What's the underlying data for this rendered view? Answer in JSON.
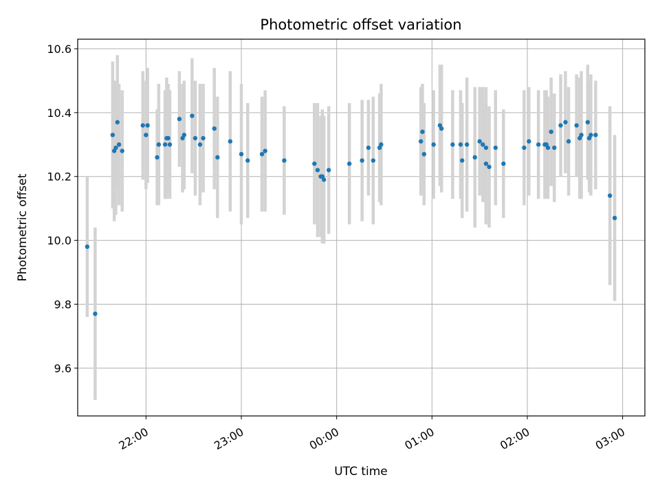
{
  "chart_data": {
    "type": "scatter",
    "title": "Photometric offset variation",
    "xlabel": "UTC time",
    "ylabel": "Photometric offset",
    "x_ticks": [
      "22:00",
      "23:00",
      "00:00",
      "01:00",
      "02:00",
      "03:00"
    ],
    "y_ticks": [
      "9.6",
      "9.8",
      "10.0",
      "10.2",
      "10.4",
      "10.6"
    ],
    "xlim": [
      "21:17",
      "03:14"
    ],
    "ylim": [
      9.45,
      10.63
    ],
    "grid": true,
    "colors": {
      "points": "#1f77b4",
      "errorbars": "#d3d3d3",
      "grid": "#b0b0b0"
    },
    "series": [
      {
        "time": [
          "21:23",
          "21:28",
          "21:39",
          "21:40",
          "21:41",
          "21:42",
          "21:43",
          "21:45",
          "21:58",
          "22:00",
          "22:01",
          "22:07",
          "22:08",
          "22:12",
          "22:13",
          "22:14",
          "22:15",
          "22:21",
          "22:23",
          "22:24",
          "22:29",
          "22:31",
          "22:34",
          "22:36",
          "22:43",
          "22:45",
          "22:53",
          "23:00",
          "23:04",
          "23:13",
          "23:15",
          "23:27",
          "23:46",
          "23:48",
          "23:50",
          "23:51",
          "23:52",
          "23:55",
          "24:08",
          "24:16",
          "24:20",
          "24:23",
          "24:27",
          "24:28",
          "24:53",
          "24:54",
          "24:55",
          "25:01",
          "25:05",
          "25:06",
          "25:13",
          "25:18",
          "25:19",
          "25:22",
          "25:27",
          "25:30",
          "25:32",
          "25:34",
          "25:34",
          "25:36",
          "25:40",
          "25:45",
          "25:58",
          "26:01",
          "26:07",
          "26:11",
          "26:12",
          "26:13",
          "26:15",
          "26:17",
          "26:21",
          "26:24",
          "26:26",
          "26:31",
          "26:33",
          "26:34",
          "26:38",
          "26:39",
          "26:40",
          "26:43",
          "26:52",
          "26:55"
        ],
        "y": [
          9.98,
          9.77,
          10.33,
          10.28,
          10.29,
          10.37,
          10.3,
          10.28,
          10.36,
          10.33,
          10.36,
          10.26,
          10.3,
          10.3,
          10.32,
          10.32,
          10.3,
          10.38,
          10.32,
          10.33,
          10.39,
          10.32,
          10.3,
          10.32,
          10.35,
          10.26,
          10.31,
          10.27,
          10.25,
          10.27,
          10.28,
          10.25,
          10.24,
          10.22,
          10.2,
          10.2,
          10.19,
          10.22,
          10.24,
          10.25,
          10.29,
          10.25,
          10.29,
          10.3,
          10.31,
          10.34,
          10.27,
          10.3,
          10.36,
          10.35,
          10.3,
          10.3,
          10.25,
          10.3,
          10.26,
          10.31,
          10.3,
          10.29,
          10.24,
          10.23,
          10.29,
          10.24,
          10.29,
          10.31,
          10.3,
          10.3,
          10.3,
          10.29,
          10.34,
          10.29,
          10.36,
          10.37,
          10.31,
          10.36,
          10.32,
          10.33,
          10.37,
          10.32,
          10.33,
          10.33,
          10.14,
          10.07
        ],
        "err": [
          0.22,
          0.27,
          0.23,
          0.22,
          0.21,
          0.21,
          0.19,
          0.19,
          0.17,
          0.17,
          0.18,
          0.15,
          0.19,
          0.17,
          0.19,
          0.17,
          0.17,
          0.15,
          0.17,
          0.17,
          0.18,
          0.18,
          0.19,
          0.17,
          0.19,
          0.19,
          0.22,
          0.22,
          0.18,
          0.18,
          0.19,
          0.17,
          0.19,
          0.21,
          0.19,
          0.21,
          0.2,
          0.2,
          0.19,
          0.19,
          0.15,
          0.2,
          0.17,
          0.19,
          0.17,
          0.15,
          0.16,
          0.17,
          0.19,
          0.2,
          0.17,
          0.17,
          0.18,
          0.21,
          0.22,
          0.17,
          0.18,
          0.19,
          0.19,
          0.19,
          0.18,
          0.17,
          0.18,
          0.17,
          0.17,
          0.17,
          0.17,
          0.16,
          0.17,
          0.17,
          0.16,
          0.16,
          0.17,
          0.16,
          0.19,
          0.2,
          0.18,
          0.17,
          0.19,
          0.17,
          0.28,
          0.26
        ]
      }
    ]
  }
}
